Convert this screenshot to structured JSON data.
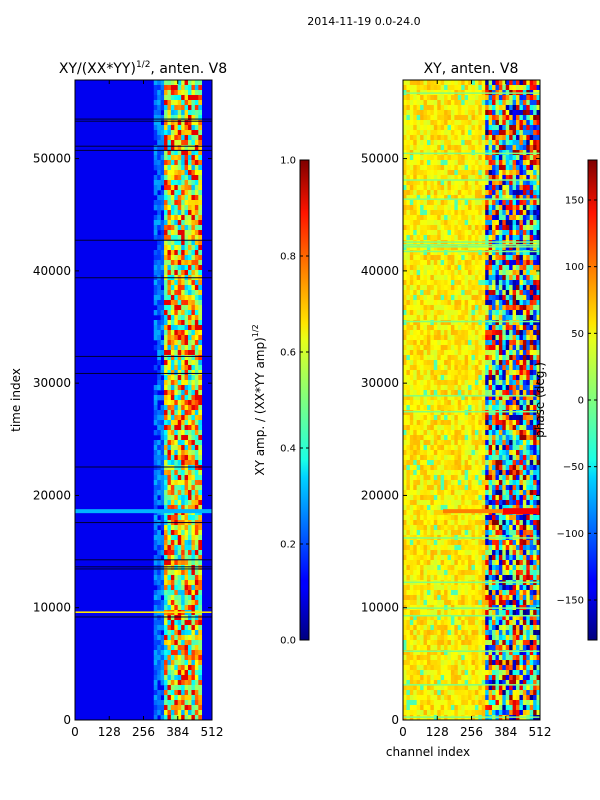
{
  "suptitle": "2014-11-19 0.0-24.0",
  "chart_data": [
    {
      "type": "heatmap",
      "title": "XY/(XX*YY)^{1/2}, anten. V8",
      "title_main": "XY/(XX*YY)",
      "title_sup": "1/2",
      "title_tail": ", anten. V8",
      "xlabel": "",
      "ylabel": "time index",
      "xlim": [
        0,
        512
      ],
      "ylim": [
        0,
        57000
      ],
      "xticks": [
        "0",
        "128",
        "256",
        "384",
        "512"
      ],
      "yticks": [
        "0",
        "10000",
        "20000",
        "30000",
        "40000",
        "50000"
      ],
      "colormap": "jet",
      "colorbar": {
        "label": "XY amp. / (XX*YY amp)^{1/2}",
        "label_main": "XY amp. / (XX*YY amp)",
        "label_sup": "1/2",
        "range": [
          0.0,
          1.0
        ],
        "ticks": [
          "0.0",
          "0.2",
          "0.4",
          "0.6",
          "0.8",
          "1.0"
        ]
      }
    },
    {
      "type": "heatmap",
      "title": "XY, anten. V8",
      "xlabel": "channel index",
      "ylabel": "",
      "xlim": [
        0,
        512
      ],
      "ylim": [
        0,
        57000
      ],
      "xticks": [
        "0",
        "128",
        "256",
        "384",
        "512"
      ],
      "yticks": [
        "0",
        "10000",
        "20000",
        "30000",
        "40000",
        "50000"
      ],
      "colormap": "jet",
      "colorbar": {
        "label": "phase (deg.)",
        "range": [
          -180,
          180
        ],
        "ticks": [
          "−150",
          "−100",
          "−50",
          "0",
          "50",
          "100",
          "150"
        ]
      }
    }
  ]
}
